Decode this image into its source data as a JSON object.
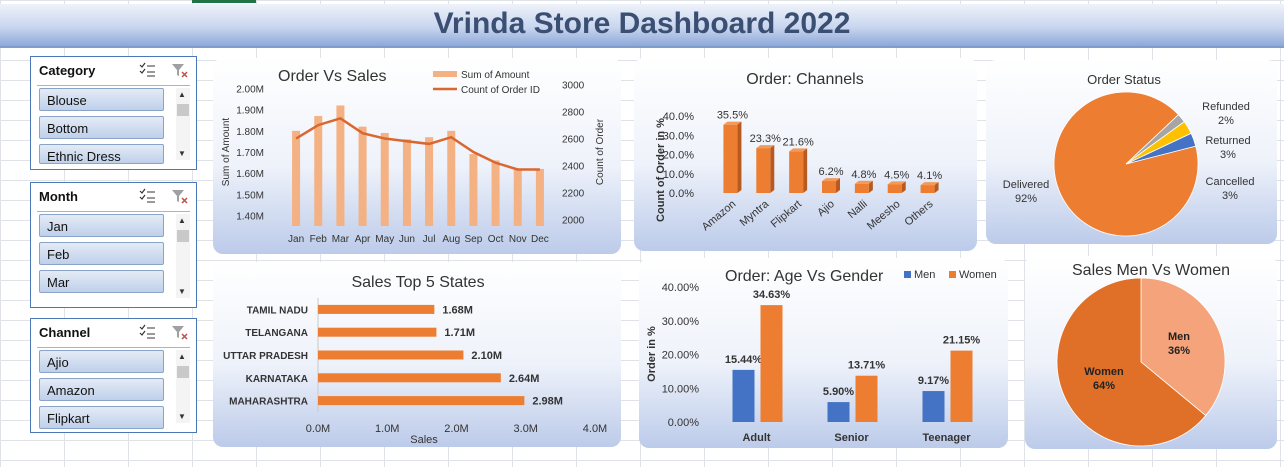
{
  "dashboard": {
    "title": "Vrinda Store Dashboard 2022"
  },
  "slicers": [
    {
      "title": "Category",
      "items": [
        "Blouse",
        "Bottom",
        "Ethnic Dress"
      ]
    },
    {
      "title": "Month",
      "items": [
        "Jan",
        "Feb",
        "Mar"
      ]
    },
    {
      "title": "Channel",
      "items": [
        "Ajio",
        "Amazon",
        "Flipkart"
      ]
    }
  ],
  "icons": {
    "multi_select": "multi-select-icon",
    "clear_filter": "clear-filter-icon"
  },
  "colors": {
    "orange": "#ed7d31",
    "light_orange": "#f4b183",
    "blue": "#4472c4",
    "grey": "#a5a5a5",
    "yellow": "#ffc000",
    "title": "#3b4f73"
  },
  "chart_data": [
    {
      "type": "bar",
      "title": "Order Vs Sales",
      "categories": [
        "Jan",
        "Feb",
        "Mar",
        "Apr",
        "May",
        "Jun",
        "Jul",
        "Aug",
        "Sep",
        "Oct",
        "Nov",
        "Dec"
      ],
      "series": [
        {
          "name": "Sum of Amount",
          "type": "bar",
          "axis": "left",
          "values": [
            1.8,
            1.87,
            1.92,
            1.82,
            1.79,
            1.76,
            1.77,
            1.8,
            1.69,
            1.66,
            1.62,
            1.62
          ]
        },
        {
          "name": "Count of Order ID",
          "type": "line",
          "axis": "right",
          "values": [
            2600,
            2700,
            2750,
            2640,
            2600,
            2580,
            2560,
            2610,
            2500,
            2420,
            2370,
            2370
          ]
        }
      ],
      "ylabel": "Sum of Amount",
      "y2label": "Count of Order",
      "ylim": [
        1.35,
        2.05
      ],
      "y2lim": [
        1950,
        3050
      ],
      "yticks": [
        "1.40M",
        "1.50M",
        "1.60M",
        "1.70M",
        "1.80M",
        "1.90M",
        "2.00M"
      ],
      "yticks_values": [
        1.4,
        1.5,
        1.6,
        1.7,
        1.8,
        1.9,
        2.0
      ],
      "y2ticks": [
        "2000",
        "2200",
        "2400",
        "2600",
        "2800",
        "3000"
      ],
      "y2ticks_values": [
        2000,
        2200,
        2400,
        2600,
        2800,
        3000
      ],
      "legend": "top-right"
    },
    {
      "type": "bar",
      "title": "Order: Channels",
      "categories": [
        "Amazon",
        "Myntra",
        "Flipkart",
        "Ajio",
        "Nalli",
        "Meesho",
        "Others"
      ],
      "values": [
        35.5,
        23.3,
        21.6,
        6.2,
        4.8,
        4.5,
        4.1
      ],
      "labels": [
        "35.5%",
        "23.3%",
        "21.6%",
        "6.2%",
        "4.8%",
        "4.5%",
        "4.1%"
      ],
      "ylabel": "Count of Order in %",
      "ylim": [
        0,
        40
      ],
      "yticks": [
        "0.0%",
        "10.0%",
        "20.0%",
        "30.0%",
        "40.0%"
      ],
      "yticks_values": [
        0,
        10,
        20,
        30,
        40
      ]
    },
    {
      "type": "pie",
      "title": "Order Status",
      "slices": [
        {
          "name": "Delivered",
          "value": 92,
          "label": "92%",
          "color": "#ed7d31"
        },
        {
          "name": "Refunded",
          "value": 2,
          "label": "2%",
          "color": "#a5a5a5"
        },
        {
          "name": "Returned",
          "value": 3,
          "label": "3%",
          "color": "#ffc000"
        },
        {
          "name": "Cancelled",
          "value": 3,
          "label": "3%",
          "color": "#4472c4"
        }
      ]
    },
    {
      "type": "bar",
      "orientation": "horizontal",
      "title": "Sales Top 5 States",
      "categories": [
        "TAMIL NADU",
        "TELANGANA",
        "UTTAR PRADESH",
        "KARNATAKA",
        "MAHARASHTRA"
      ],
      "values": [
        1.68,
        1.71,
        2.1,
        2.64,
        2.98
      ],
      "labels": [
        "1.68M",
        "1.71M",
        "2.10M",
        "2.64M",
        "2.98M"
      ],
      "xlabel": "Sales",
      "xlim": [
        0,
        4
      ],
      "xticks": [
        "0.0M",
        "1.0M",
        "2.0M",
        "3.0M",
        "4.0M"
      ],
      "xticks_values": [
        0,
        1,
        2,
        3,
        4
      ]
    },
    {
      "type": "bar",
      "title": "Order: Age Vs Gender",
      "categories": [
        "Adult",
        "Senior",
        "Teenager"
      ],
      "series": [
        {
          "name": "Men",
          "values": [
            15.44,
            5.9,
            9.17
          ],
          "labels": [
            "15.44%",
            "5.90%",
            "9.17%"
          ],
          "color": "#4472c4"
        },
        {
          "name": "Women",
          "values": [
            34.63,
            13.71,
            21.15
          ],
          "labels": [
            "34.63%",
            "13.71%",
            "21.15%"
          ],
          "color": "#ed7d31"
        }
      ],
      "ylabel": "Order in %",
      "ylim": [
        0,
        40
      ],
      "yticks": [
        "0.00%",
        "10.00%",
        "20.00%",
        "30.00%",
        "40.00%"
      ],
      "yticks_values": [
        0,
        10,
        20,
        30,
        40
      ],
      "legend": "top-right"
    },
    {
      "type": "pie",
      "title": "Sales Men Vs Women",
      "slices": [
        {
          "name": "Men",
          "value": 36,
          "label": "36%",
          "color": "#f4a37a"
        },
        {
          "name": "Women",
          "value": 64,
          "label": "64%",
          "color": "#e07028"
        }
      ]
    }
  ]
}
